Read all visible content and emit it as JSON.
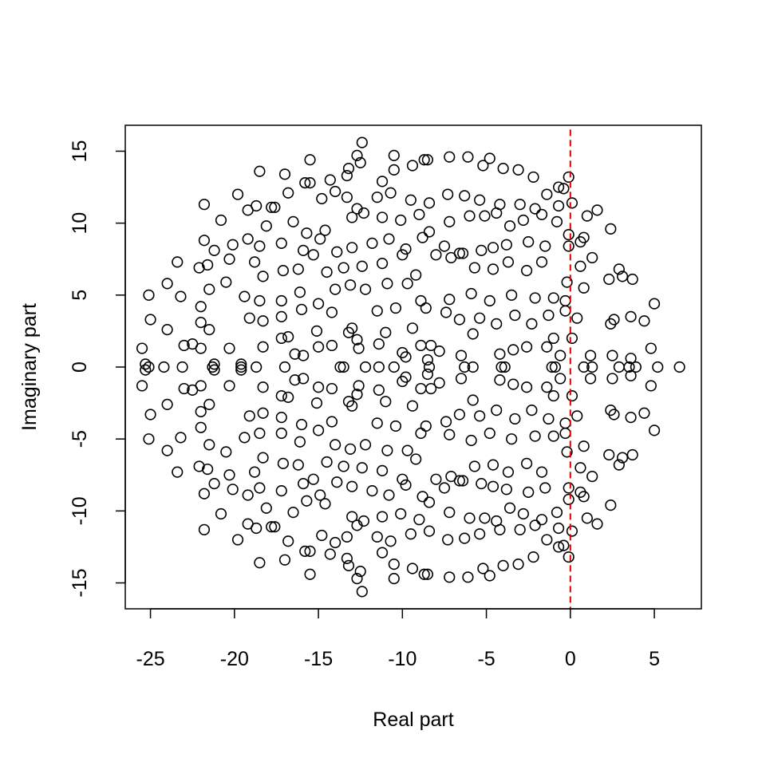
{
  "chart_data": {
    "type": "scatter",
    "title": "",
    "xlabel": "Real part",
    "ylabel": "Imaginary part",
    "xlim": [
      -26.5,
      7.8
    ],
    "ylim": [
      -16.8,
      16.8
    ],
    "xticks": [
      -25,
      -20,
      -15,
      -10,
      -5,
      0,
      5
    ],
    "yticks": [
      -15,
      -10,
      -5,
      0,
      5,
      10,
      15
    ],
    "grid": false,
    "legend": "none",
    "marker": "open-circle",
    "marker_color": "#000000",
    "reference_line": {
      "orientation": "vertical",
      "x": 0,
      "style": "dashed",
      "color": "#dd0000"
    },
    "upper_half_points": [
      [
        6.5,
        0
      ],
      [
        5.2,
        0
      ],
      [
        3.9,
        0
      ],
      [
        3.5,
        0
      ],
      [
        2.9,
        0
      ],
      [
        1.3,
        0
      ],
      [
        0.8,
        0
      ],
      [
        -0.9,
        0
      ],
      [
        -1.1,
        0
      ],
      [
        -3.9,
        0
      ],
      [
        -4.1,
        0
      ],
      [
        -5.8,
        0
      ],
      [
        -6.3,
        0
      ],
      [
        -8.4,
        0
      ],
      [
        -10.5,
        0
      ],
      [
        -11.4,
        0
      ],
      [
        -12.2,
        0
      ],
      [
        -13.5,
        0
      ],
      [
        -13.7,
        0
      ],
      [
        -17.0,
        0
      ],
      [
        -18.7,
        0
      ],
      [
        -19.6,
        0
      ],
      [
        -21.3,
        0
      ],
      [
        -23.1,
        0
      ],
      [
        -24.2,
        0
      ],
      [
        -25.1,
        0
      ],
      [
        -25.5,
        1.3
      ],
      [
        -25.3,
        0.2
      ],
      [
        -23.0,
        1.5
      ],
      [
        -22.5,
        1.6
      ],
      [
        -22.0,
        1.3
      ],
      [
        -21.2,
        0.2
      ],
      [
        -20.3,
        1.3
      ],
      [
        -19.6,
        0.2
      ],
      [
        -18.3,
        1.4
      ],
      [
        -17.2,
        2.0
      ],
      [
        -16.8,
        2.1
      ],
      [
        -16.4,
        0.9
      ],
      [
        -15.9,
        0.8
      ],
      [
        -15.0,
        1.4
      ],
      [
        -14.2,
        1.5
      ],
      [
        -13.2,
        2.4
      ],
      [
        -12.7,
        1.9
      ],
      [
        -12.6,
        1.3
      ],
      [
        -11.4,
        1.6
      ],
      [
        -11.0,
        2.4
      ],
      [
        -10.0,
        1.0
      ],
      [
        -9.8,
        0.7
      ],
      [
        -8.9,
        1.5
      ],
      [
        -8.5,
        0.5
      ],
      [
        -8.3,
        1.5
      ],
      [
        -7.8,
        1.1
      ],
      [
        -6.5,
        0.8
      ],
      [
        -5.8,
        2.3
      ],
      [
        -4.2,
        0.9
      ],
      [
        -3.4,
        1.2
      ],
      [
        -2.6,
        1.4
      ],
      [
        -1.4,
        1.4
      ],
      [
        -1.0,
        2.0
      ],
      [
        -0.6,
        0.8
      ],
      [
        0.1,
        2.0
      ],
      [
        1.2,
        0.8
      ],
      [
        2.5,
        0.8
      ],
      [
        3.6,
        0.6
      ],
      [
        4.8,
        1.3
      ],
      [
        -25.0,
        3.3
      ],
      [
        -24.0,
        2.6
      ],
      [
        -22.0,
        3.1
      ],
      [
        -21.5,
        2.6
      ],
      [
        -19.1,
        3.4
      ],
      [
        -18.3,
        3.2
      ],
      [
        -17.2,
        3.5
      ],
      [
        -16.0,
        4.0
      ],
      [
        -15.1,
        2.5
      ],
      [
        -14.2,
        3.8
      ],
      [
        -13.0,
        2.7
      ],
      [
        -11.5,
        3.9
      ],
      [
        -10.4,
        4.1
      ],
      [
        -9.4,
        2.7
      ],
      [
        -8.6,
        4.1
      ],
      [
        -7.4,
        3.8
      ],
      [
        -6.6,
        3.3
      ],
      [
        -5.4,
        3.4
      ],
      [
        -4.4,
        3.0
      ],
      [
        -3.3,
        3.6
      ],
      [
        -2.3,
        3.0
      ],
      [
        -1.3,
        3.6
      ],
      [
        -0.3,
        3.9
      ],
      [
        0.4,
        3.4
      ],
      [
        2.4,
        3.0
      ],
      [
        2.6,
        3.3
      ],
      [
        3.6,
        3.5
      ],
      [
        4.4,
        3.2
      ],
      [
        -25.1,
        5.0
      ],
      [
        -24.0,
        5.8
      ],
      [
        -23.2,
        4.9
      ],
      [
        -22.0,
        4.2
      ],
      [
        -21.5,
        5.4
      ],
      [
        -20.5,
        5.9
      ],
      [
        -19.4,
        4.9
      ],
      [
        -18.5,
        4.6
      ],
      [
        -17.2,
        4.6
      ],
      [
        -16.1,
        5.2
      ],
      [
        -15.0,
        4.4
      ],
      [
        -14.0,
        5.4
      ],
      [
        -13.1,
        5.7
      ],
      [
        -12.2,
        5.4
      ],
      [
        -10.9,
        5.8
      ],
      [
        -9.7,
        5.8
      ],
      [
        -8.9,
        4.6
      ],
      [
        -7.2,
        4.7
      ],
      [
        -5.9,
        5.1
      ],
      [
        -4.8,
        4.6
      ],
      [
        -3.5,
        5.0
      ],
      [
        -2.1,
        4.8
      ],
      [
        -1.0,
        4.8
      ],
      [
        -0.3,
        4.6
      ],
      [
        0.8,
        5.5
      ],
      [
        2.3,
        6.1
      ],
      [
        3.1,
        6.3
      ],
      [
        3.7,
        6.1
      ],
      [
        5.0,
        4.4
      ],
      [
        -23.4,
        7.3
      ],
      [
        -22.1,
        6.9
      ],
      [
        -21.6,
        7.1
      ],
      [
        -20.3,
        7.5
      ],
      [
        -18.8,
        7.3
      ],
      [
        -18.3,
        6.3
      ],
      [
        -17.1,
        6.7
      ],
      [
        -16.2,
        6.8
      ],
      [
        -15.3,
        7.8
      ],
      [
        -14.5,
        6.6
      ],
      [
        -13.5,
        6.9
      ],
      [
        -12.4,
        7.0
      ],
      [
        -11.2,
        7.2
      ],
      [
        -10.0,
        7.8
      ],
      [
        -9.2,
        6.4
      ],
      [
        -8.0,
        7.8
      ],
      [
        -7.1,
        7.6
      ],
      [
        -6.6,
        7.9
      ],
      [
        -5.7,
        6.9
      ],
      [
        -4.6,
        6.8
      ],
      [
        -3.7,
        7.3
      ],
      [
        -2.6,
        6.7
      ],
      [
        -1.7,
        7.3
      ],
      [
        -0.2,
        5.9
      ],
      [
        0.6,
        7.0
      ],
      [
        1.3,
        7.6
      ],
      [
        2.9,
        6.8
      ],
      [
        -21.8,
        8.8
      ],
      [
        -21.2,
        8.1
      ],
      [
        -20.1,
        8.5
      ],
      [
        -19.2,
        8.9
      ],
      [
        -18.5,
        8.4
      ],
      [
        -17.2,
        8.6
      ],
      [
        -15.9,
        8.1
      ],
      [
        -14.9,
        8.9
      ],
      [
        -13.9,
        8.0
      ],
      [
        -13.0,
        8.3
      ],
      [
        -11.8,
        8.6
      ],
      [
        -10.8,
        8.9
      ],
      [
        -9.8,
        8.2
      ],
      [
        -8.8,
        9.0
      ],
      [
        -7.5,
        8.4
      ],
      [
        -6.4,
        7.9
      ],
      [
        -5.3,
        8.1
      ],
      [
        -4.6,
        8.3
      ],
      [
        -3.8,
        8.5
      ],
      [
        -2.5,
        8.7
      ],
      [
        -1.5,
        8.4
      ],
      [
        -0.1,
        8.4
      ],
      [
        0.6,
        8.7
      ],
      [
        -20.8,
        10.2
      ],
      [
        -19.2,
        10.9
      ],
      [
        -18.1,
        9.8
      ],
      [
        -17.6,
        11.1
      ],
      [
        -16.5,
        10.1
      ],
      [
        -15.7,
        9.3
      ],
      [
        -14.6,
        9.5
      ],
      [
        -13.0,
        10.4
      ],
      [
        -12.3,
        10.7
      ],
      [
        -11.2,
        10.4
      ],
      [
        -10.1,
        10.2
      ],
      [
        -9.0,
        10.6
      ],
      [
        -8.4,
        9.4
      ],
      [
        -7.2,
        10.1
      ],
      [
        -6.0,
        10.5
      ],
      [
        -5.1,
        10.5
      ],
      [
        -4.4,
        10.7
      ],
      [
        -3.6,
        9.8
      ],
      [
        -2.8,
        10.2
      ],
      [
        -1.7,
        10.6
      ],
      [
        -0.8,
        10.1
      ],
      [
        -0.1,
        9.2
      ],
      [
        0.8,
        9.0
      ],
      [
        1.6,
        10.9
      ],
      [
        2.4,
        9.6
      ],
      [
        -21.8,
        11.3
      ],
      [
        -19.8,
        12.0
      ],
      [
        -18.7,
        11.2
      ],
      [
        -17.8,
        11.1
      ],
      [
        -16.8,
        12.1
      ],
      [
        -15.8,
        12.8
      ],
      [
        -14.8,
        11.7
      ],
      [
        -14.0,
        12.2
      ],
      [
        -13.3,
        11.8
      ],
      [
        -12.7,
        11.0
      ],
      [
        -11.5,
        11.8
      ],
      [
        -10.7,
        12.1
      ],
      [
        -9.5,
        11.6
      ],
      [
        -8.4,
        11.4
      ],
      [
        -7.3,
        12.0
      ],
      [
        -6.3,
        11.9
      ],
      [
        -5.4,
        11.6
      ],
      [
        -4.2,
        11.3
      ],
      [
        -3.0,
        11.3
      ],
      [
        -2.1,
        11.0
      ],
      [
        -1.4,
        12.0
      ],
      [
        -0.7,
        11.2
      ],
      [
        0.1,
        11.4
      ],
      [
        1.0,
        10.5
      ],
      [
        -18.5,
        13.6
      ],
      [
        -17.0,
        13.4
      ],
      [
        -15.5,
        12.8
      ],
      [
        -14.3,
        13.0
      ],
      [
        -13.3,
        13.3
      ],
      [
        -12.5,
        14.2
      ],
      [
        -11.2,
        12.9
      ],
      [
        -10.5,
        13.7
      ],
      [
        -9.4,
        14.0
      ],
      [
        -8.5,
        14.4
      ],
      [
        -7.2,
        14.6
      ],
      [
        -6.1,
        14.6
      ],
      [
        -5.2,
        14.0
      ],
      [
        -4.0,
        13.8
      ],
      [
        -3.1,
        13.7
      ],
      [
        -2.2,
        13.2
      ],
      [
        -0.7,
        12.5
      ],
      [
        -0.1,
        13.2
      ],
      [
        -15.5,
        14.4
      ],
      [
        -13.2,
        13.8
      ],
      [
        -12.7,
        14.7
      ],
      [
        -12.4,
        15.6
      ],
      [
        -10.5,
        14.7
      ],
      [
        -8.7,
        14.4
      ],
      [
        -4.8,
        14.5
      ],
      [
        -0.4,
        12.4
      ]
    ]
  }
}
